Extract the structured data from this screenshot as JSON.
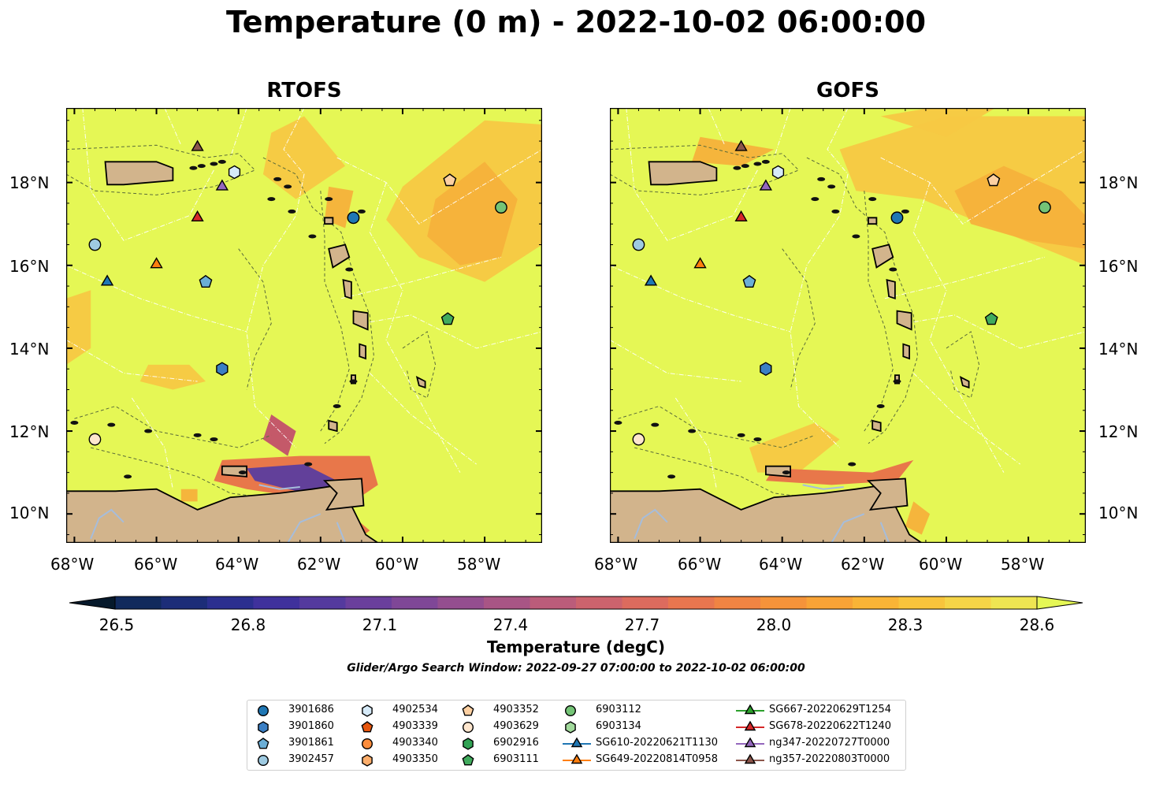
{
  "title": "Temperature (0 m) - 2022-10-02 06:00:00",
  "panels": [
    {
      "title": "RTOFS"
    },
    {
      "title": "GOFS"
    }
  ],
  "axes": {
    "lon_ticks": [
      "68°W",
      "66°W",
      "64°W",
      "62°W",
      "60°W",
      "58°W"
    ],
    "lat_ticks": [
      "18°N",
      "16°N",
      "14°N",
      "12°N",
      "10°N"
    ],
    "lon_range": [
      -68.2,
      -56.6
    ],
    "lat_range": [
      9.3,
      19.8
    ]
  },
  "colorbar": {
    "label": "Temperature (degC)",
    "ticks": [
      "26.5",
      "26.8",
      "27.1",
      "27.4",
      "27.7",
      "28.0",
      "28.3",
      "28.6"
    ],
    "min": 26.5,
    "max": 28.6,
    "extend": "both"
  },
  "search_window": "Glider/Argo Search Window: 2022-09-27 07:00:00 to 2022-10-02 06:00:00",
  "colors": {
    "ocean_warm": "#e5f755",
    "land": "#d2b48c",
    "rivers": "#a6bddb"
  },
  "legend": {
    "columns": [
      [
        {
          "label": "3901686",
          "marker": "circle",
          "color": "#1f77b4"
        },
        {
          "label": "3901860",
          "marker": "hexagon",
          "color": "#3b7fc4"
        },
        {
          "label": "3901861",
          "marker": "pentagon",
          "color": "#6baed6"
        },
        {
          "label": "3902457",
          "marker": "circle",
          "color": "#9ecae1"
        }
      ],
      [
        {
          "label": "4902534",
          "marker": "hexagon",
          "color": "#d6eaf8"
        },
        {
          "label": "4903339",
          "marker": "pentagon",
          "color": "#e6550d"
        },
        {
          "label": "4903340",
          "marker": "circle",
          "color": "#fd8d3c"
        },
        {
          "label": "4903350",
          "marker": "hexagon",
          "color": "#fdae6b"
        }
      ],
      [
        {
          "label": "4903352",
          "marker": "pentagon",
          "color": "#fdd0a2"
        },
        {
          "label": "4903629",
          "marker": "circle",
          "color": "#fee6ce"
        },
        {
          "label": "6902916",
          "marker": "hexagon",
          "color": "#31a354"
        },
        {
          "label": "6903111",
          "marker": "pentagon",
          "color": "#41ab5d"
        }
      ],
      [
        {
          "label": "6903112",
          "marker": "circle",
          "color": "#74c476"
        },
        {
          "label": "6903134",
          "marker": "hexagon",
          "color": "#a1d99b"
        },
        {
          "label": "SG610-20220621T1130",
          "marker": "triangle",
          "color": "#1f77b4",
          "line": true
        },
        {
          "label": "SG649-20220814T0958",
          "marker": "triangle",
          "color": "#ff7f0e",
          "line": true
        }
      ],
      [
        {
          "label": "SG667-20220629T1254",
          "marker": "triangle",
          "color": "#2ca02c",
          "line": true
        },
        {
          "label": "SG678-20220622T1240",
          "marker": "triangle",
          "color": "#d62728",
          "line": true
        },
        {
          "label": "ng347-20220727T0000",
          "marker": "triangle",
          "color": "#9467bd",
          "line": true
        },
        {
          "label": "ng357-20220803T0000",
          "marker": "triangle",
          "color": "#8c564b",
          "line": true
        }
      ]
    ]
  },
  "observations": [
    {
      "id": "3901686",
      "marker": "circle",
      "color": "#1f77b4",
      "lon": -61.2,
      "lat": 17.15
    },
    {
      "id": "3901860",
      "marker": "hexagon",
      "color": "#3b7fc4",
      "lon": -64.4,
      "lat": 13.5
    },
    {
      "id": "3901861",
      "marker": "pentagon",
      "color": "#6baed6",
      "lon": -64.8,
      "lat": 15.6
    },
    {
      "id": "3902457",
      "marker": "circle",
      "color": "#9ecae1",
      "lon": -67.5,
      "lat": 16.5
    },
    {
      "id": "4902534",
      "marker": "hexagon",
      "color": "#d6eaf8",
      "lon": -64.1,
      "lat": 18.25
    },
    {
      "id": "4903352",
      "marker": "pentagon",
      "color": "#fdd0a2",
      "lon": -58.85,
      "lat": 18.05
    },
    {
      "id": "4903629",
      "marker": "circle",
      "color": "#fee6ce",
      "lon": -67.5,
      "lat": 11.8
    },
    {
      "id": "6903111",
      "marker": "pentagon",
      "color": "#41ab5d",
      "lon": -58.9,
      "lat": 14.7
    },
    {
      "id": "6903112",
      "marker": "circle",
      "color": "#74c476",
      "lon": -57.6,
      "lat": 17.4
    },
    {
      "id": "SG610-20220621T1130",
      "marker": "triangle",
      "color": "#1f77b4",
      "lon": -67.2,
      "lat": 15.6
    },
    {
      "id": "SG649-20220814T0958",
      "marker": "triangle",
      "color": "#ff7f0e",
      "lon": -66.0,
      "lat": 16.02
    },
    {
      "id": "SG678-20220622T1240",
      "marker": "triangle",
      "color": "#d62728",
      "lon": -65.0,
      "lat": 17.15
    },
    {
      "id": "ng347-20220727T0000",
      "marker": "triangle",
      "color": "#9467bd",
      "lon": -64.4,
      "lat": 17.9
    },
    {
      "id": "ng357-20220803T0000",
      "marker": "triangle",
      "color": "#8c564b",
      "lon": -65.0,
      "lat": 18.85
    }
  ]
}
